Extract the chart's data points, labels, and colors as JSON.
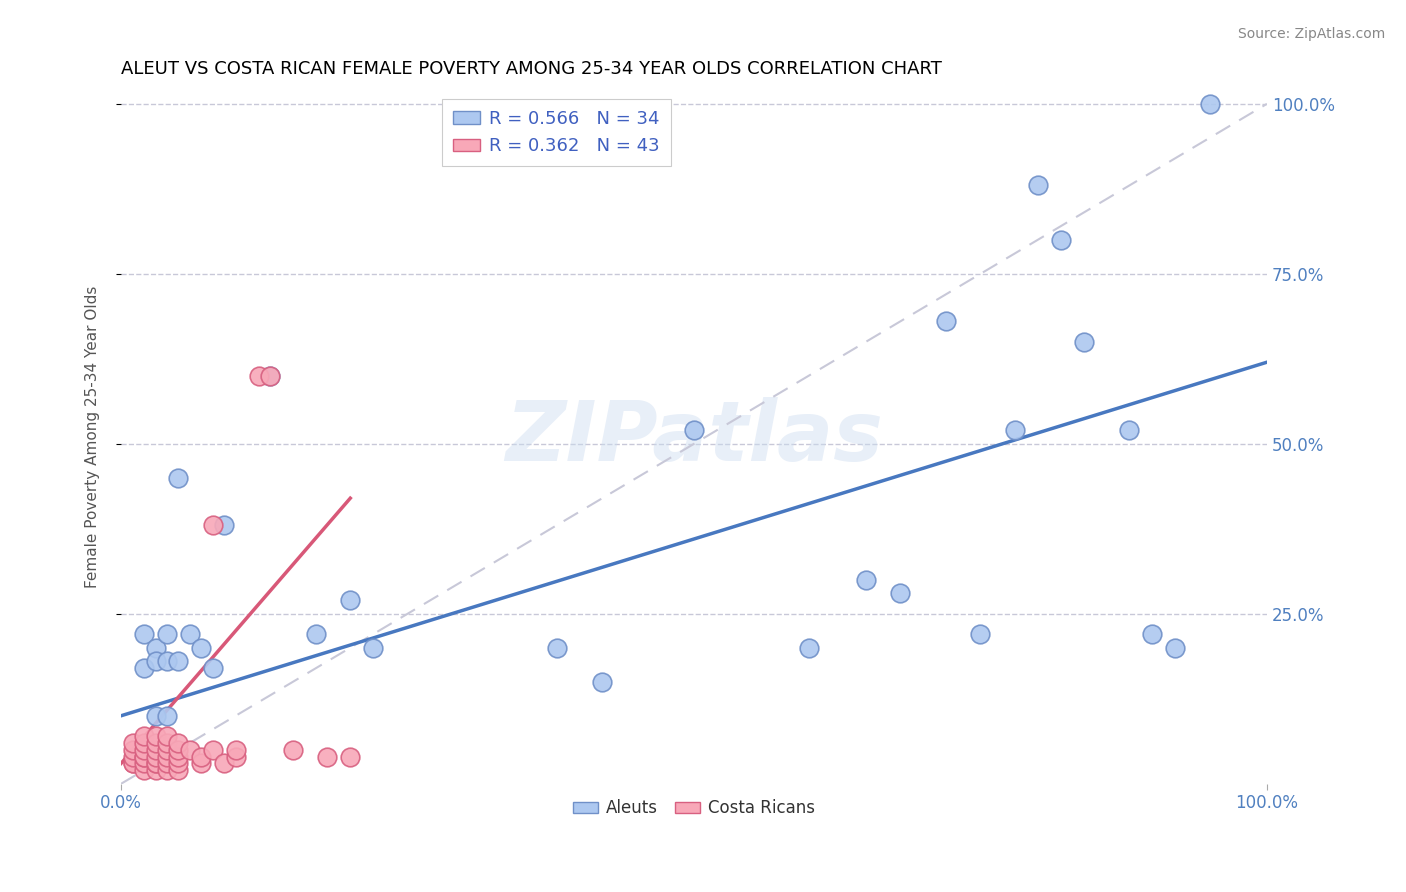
{
  "title": "ALEUT VS COSTA RICAN FEMALE POVERTY AMONG 25-34 YEAR OLDS CORRELATION CHART",
  "source": "Source: ZipAtlas.com",
  "ylabel": "Female Poverty Among 25-34 Year Olds",
  "xlim": [
    0,
    1
  ],
  "ylim": [
    0,
    1.02
  ],
  "xtick_labels": [
    "0.0%",
    "100.0%"
  ],
  "ytick_labels": [
    "25.0%",
    "50.0%",
    "75.0%",
    "100.0%"
  ],
  "ytick_positions": [
    0.25,
    0.5,
    0.75,
    1.0
  ],
  "grid_color": "#c8c8d8",
  "aleut_color": "#adc8f0",
  "aleut_edge_color": "#7090c8",
  "costa_rican_color": "#f8a8b8",
  "costa_rican_edge_color": "#d86080",
  "aleut_R": 0.566,
  "aleut_N": 34,
  "costa_rican_R": 0.362,
  "costa_rican_N": 43,
  "aleut_line_color": "#4878c0",
  "costa_rican_line_color": "#d85878",
  "diagonal_color": "#c8c8d8",
  "watermark_text": "ZIPatlas",
  "legend_label_aleut": "Aleuts",
  "legend_label_costa": "Costa Ricans",
  "aleut_x": [
    0.02,
    0.02,
    0.03,
    0.03,
    0.03,
    0.04,
    0.04,
    0.04,
    0.05,
    0.05,
    0.06,
    0.07,
    0.08,
    0.09,
    0.13,
    0.17,
    0.2,
    0.22,
    0.38,
    0.42,
    0.5,
    0.6,
    0.65,
    0.68,
    0.72,
    0.75,
    0.78,
    0.8,
    0.82,
    0.84,
    0.88,
    0.9,
    0.92,
    0.95
  ],
  "aleut_y": [
    0.17,
    0.22,
    0.2,
    0.1,
    0.18,
    0.1,
    0.18,
    0.22,
    0.18,
    0.45,
    0.22,
    0.2,
    0.17,
    0.38,
    0.6,
    0.22,
    0.27,
    0.2,
    0.2,
    0.15,
    0.52,
    0.2,
    0.3,
    0.28,
    0.68,
    0.22,
    0.52,
    0.88,
    0.8,
    0.65,
    0.52,
    0.22,
    0.2,
    1.0
  ],
  "costa_x": [
    0.01,
    0.01,
    0.01,
    0.01,
    0.01,
    0.02,
    0.02,
    0.02,
    0.02,
    0.02,
    0.02,
    0.02,
    0.03,
    0.03,
    0.03,
    0.03,
    0.03,
    0.03,
    0.03,
    0.04,
    0.04,
    0.04,
    0.04,
    0.04,
    0.04,
    0.05,
    0.05,
    0.05,
    0.05,
    0.05,
    0.06,
    0.07,
    0.07,
    0.08,
    0.08,
    0.09,
    0.1,
    0.1,
    0.12,
    0.13,
    0.15,
    0.18,
    0.2
  ],
  "costa_y": [
    0.03,
    0.03,
    0.04,
    0.05,
    0.06,
    0.02,
    0.03,
    0.04,
    0.04,
    0.05,
    0.06,
    0.07,
    0.02,
    0.03,
    0.03,
    0.04,
    0.05,
    0.06,
    0.07,
    0.02,
    0.03,
    0.04,
    0.05,
    0.06,
    0.07,
    0.02,
    0.03,
    0.04,
    0.05,
    0.06,
    0.05,
    0.03,
    0.04,
    0.05,
    0.38,
    0.03,
    0.04,
    0.05,
    0.6,
    0.6,
    0.05,
    0.04,
    0.04
  ],
  "aleut_line_x": [
    0.0,
    1.0
  ],
  "aleut_line_y": [
    0.1,
    0.62
  ],
  "costa_line_x": [
    0.0,
    0.2
  ],
  "costa_line_y": [
    0.03,
    0.42
  ]
}
